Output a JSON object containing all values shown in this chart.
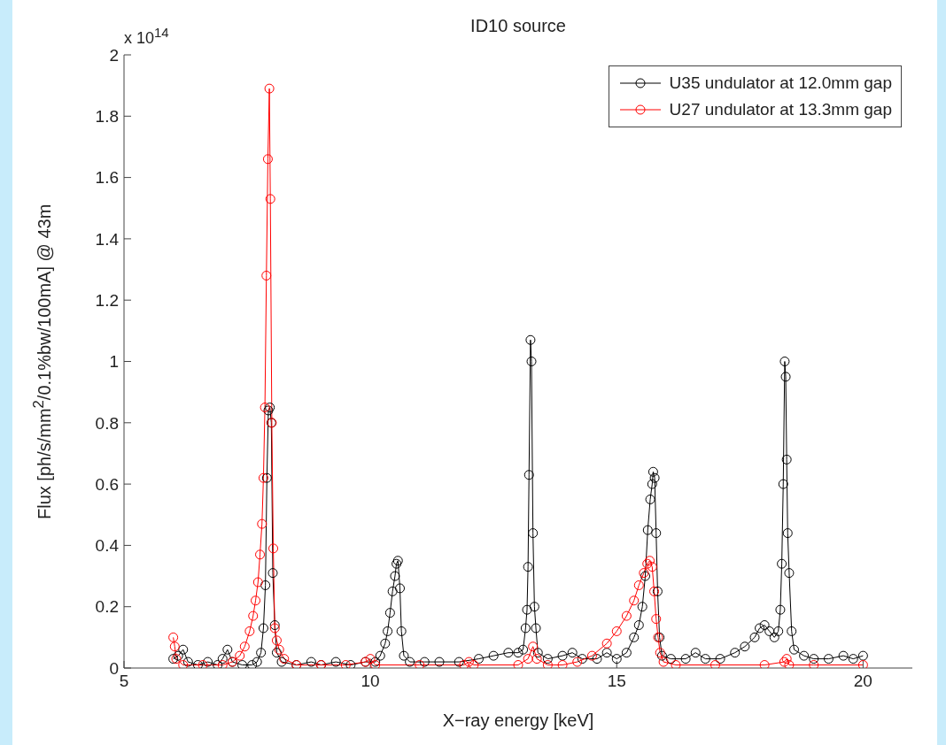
{
  "chart_data": {
    "type": "line",
    "title": "ID10 source",
    "xlabel": "X−ray energy [keV]",
    "ylabel": "Flux [ph/s/mm$^{2}$/0.1%bw/100mA] @ 43m",
    "annotations": [
      "x 10$^{14}$"
    ],
    "xlim": [
      5,
      21
    ],
    "xticks": [
      5,
      10,
      15,
      20
    ],
    "ylim": [
      0,
      2
    ],
    "yticks": [
      0,
      0.2,
      0.4,
      0.6,
      0.8,
      1,
      1.2,
      1.4,
      1.6,
      1.8,
      2
    ],
    "grid": false,
    "legend": "top right",
    "marker": "circle",
    "line_style": "solid",
    "series": [
      {
        "name": "U35 undulator at 12.0mm gap",
        "color": "#000000",
        "x": [
          6.0,
          6.1,
          6.2,
          6.3,
          6.5,
          6.7,
          6.9,
          7.0,
          7.1,
          7.2,
          7.4,
          7.6,
          7.7,
          7.78,
          7.83,
          7.87,
          7.9,
          7.93,
          7.96,
          7.99,
          8.02,
          8.06,
          8.1,
          8.2,
          8.5,
          8.8,
          9.0,
          9.3,
          9.6,
          9.9,
          10.1,
          10.2,
          10.3,
          10.35,
          10.4,
          10.45,
          10.5,
          10.53,
          10.56,
          10.6,
          10.63,
          10.68,
          10.8,
          11.1,
          11.4,
          11.8,
          12.2,
          12.5,
          12.8,
          13.0,
          13.1,
          13.15,
          13.18,
          13.2,
          13.22,
          13.25,
          13.27,
          13.3,
          13.33,
          13.36,
          13.4,
          13.6,
          13.9,
          14.1,
          14.3,
          14.6,
          14.8,
          15.0,
          15.2,
          15.35,
          15.45,
          15.52,
          15.58,
          15.63,
          15.68,
          15.72,
          15.74,
          15.77,
          15.8,
          15.83,
          15.87,
          15.92,
          16.1,
          16.4,
          16.6,
          16.8,
          17.1,
          17.4,
          17.6,
          17.8,
          17.9,
          18.0,
          18.1,
          18.2,
          18.28,
          18.32,
          18.35,
          18.38,
          18.41,
          18.43,
          18.45,
          18.47,
          18.5,
          18.55,
          18.6,
          18.8,
          19.0,
          19.3,
          19.6,
          19.8,
          20.0
        ],
        "values": [
          0.03,
          0.04,
          0.06,
          0.02,
          0.01,
          0.02,
          0.01,
          0.03,
          0.06,
          0.02,
          0.01,
          0.01,
          0.02,
          0.05,
          0.13,
          0.27,
          0.62,
          0.84,
          0.85,
          0.8,
          0.31,
          0.14,
          0.05,
          0.02,
          0.01,
          0.02,
          0.01,
          0.02,
          0.01,
          0.02,
          0.02,
          0.04,
          0.08,
          0.12,
          0.18,
          0.25,
          0.3,
          0.34,
          0.35,
          0.26,
          0.12,
          0.04,
          0.02,
          0.02,
          0.02,
          0.02,
          0.03,
          0.04,
          0.05,
          0.05,
          0.06,
          0.13,
          0.19,
          0.33,
          0.63,
          1.07,
          1.0,
          0.44,
          0.2,
          0.13,
          0.05,
          0.03,
          0.04,
          0.05,
          0.03,
          0.03,
          0.05,
          0.03,
          0.05,
          0.1,
          0.14,
          0.2,
          0.3,
          0.45,
          0.55,
          0.6,
          0.64,
          0.62,
          0.44,
          0.25,
          0.1,
          0.04,
          0.03,
          0.03,
          0.05,
          0.03,
          0.03,
          0.05,
          0.07,
          0.1,
          0.13,
          0.14,
          0.12,
          0.1,
          0.12,
          0.19,
          0.34,
          0.6,
          1.0,
          0.95,
          0.68,
          0.44,
          0.31,
          0.12,
          0.06,
          0.04,
          0.03,
          0.03,
          0.04,
          0.03,
          0.04
        ]
      },
      {
        "name": "U27 undulator at 13.3mm gap",
        "color": "#ff0000",
        "x": [
          6.0,
          6.03,
          6.06,
          6.2,
          6.6,
          7.0,
          7.2,
          7.35,
          7.45,
          7.55,
          7.62,
          7.67,
          7.72,
          7.76,
          7.8,
          7.83,
          7.86,
          7.89,
          7.92,
          7.95,
          7.97,
          8.0,
          8.03,
          8.06,
          8.1,
          8.15,
          8.25,
          8.5,
          9.0,
          9.5,
          9.9,
          10.0,
          10.1,
          11.0,
          11.9,
          12.0,
          12.1,
          13.0,
          13.2,
          13.3,
          13.38,
          13.6,
          13.9,
          14.2,
          14.5,
          14.8,
          15.0,
          15.2,
          15.35,
          15.45,
          15.55,
          15.62,
          15.67,
          15.72,
          15.76,
          15.8,
          15.84,
          15.88,
          15.95,
          16.2,
          17.0,
          18.0,
          18.4,
          18.45,
          18.5,
          19.0,
          20.0
        ],
        "values": [
          0.1,
          0.07,
          0.03,
          0.01,
          0.01,
          0.01,
          0.02,
          0.04,
          0.07,
          0.12,
          0.17,
          0.22,
          0.28,
          0.37,
          0.47,
          0.62,
          0.85,
          1.28,
          1.66,
          1.89,
          1.53,
          0.8,
          0.39,
          0.13,
          0.09,
          0.06,
          0.03,
          0.01,
          0.01,
          0.01,
          0.02,
          0.03,
          0.01,
          0.01,
          0.01,
          0.02,
          0.01,
          0.01,
          0.03,
          0.07,
          0.03,
          0.01,
          0.01,
          0.02,
          0.04,
          0.08,
          0.12,
          0.17,
          0.22,
          0.27,
          0.31,
          0.34,
          0.35,
          0.33,
          0.25,
          0.16,
          0.1,
          0.05,
          0.02,
          0.01,
          0.01,
          0.01,
          0.02,
          0.03,
          0.01,
          0.01,
          0.01
        ]
      }
    ]
  }
}
